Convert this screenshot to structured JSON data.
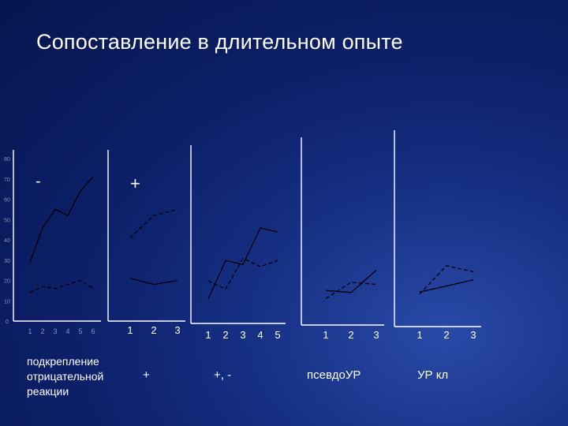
{
  "slide": {
    "title": "Сопоставление в длительном опыте"
  },
  "captions": [
    "подкрепление\nотрицательной\nреакции",
    "+",
    "+, -",
    "псевдоУР",
    "УР кл"
  ],
  "colors": {
    "line": "#000000",
    "axis": "#ffffff",
    "tick_text": "#8a93b8"
  },
  "chart_data": {
    "type": "line",
    "title": "Сопоставление в длительном опыте",
    "y_ticks": [
      0,
      10,
      20,
      30,
      40,
      50,
      60,
      70,
      80
    ],
    "ylim": [
      0,
      80
    ],
    "grid": false,
    "panels": [
      {
        "label": "-",
        "caption": "подкрепление\nотрицательной\nреакции",
        "x_ticks": [
          "1",
          "2",
          "3",
          "4",
          "5",
          "6"
        ],
        "series": [
          {
            "style": "solid",
            "x": [
              1,
              2,
              3,
              4,
              5,
              6
            ],
            "y": [
              29,
              46,
              55,
              52,
              64,
              71
            ]
          },
          {
            "style": "dashed",
            "x": [
              1,
              2,
              3,
              4,
              5,
              6
            ],
            "y": [
              14,
              17,
              16,
              18,
              20,
              16
            ]
          }
        ]
      },
      {
        "label": "+",
        "caption": "+",
        "x_ticks": [
          "1",
          "2",
          "3"
        ],
        "series": [
          {
            "style": "dashed",
            "x": [
              1,
              2,
              3
            ],
            "y": [
              41,
              52,
              55
            ]
          },
          {
            "style": "solid",
            "x": [
              1,
              2,
              3
            ],
            "y": [
              21,
              18,
              20
            ]
          }
        ]
      },
      {
        "label": "",
        "caption": "+, -",
        "x_ticks": [
          "1",
          "2",
          "3",
          "4",
          "5"
        ],
        "series": [
          {
            "style": "solid",
            "x": [
              1,
              2,
              3,
              4,
              5
            ],
            "y": [
              12,
              31,
              29,
              47,
              45
            ]
          },
          {
            "style": "dashed",
            "x": [
              1,
              2,
              3,
              4,
              5
            ],
            "y": [
              21,
              17,
              32,
              28,
              31
            ]
          }
        ]
      },
      {
        "label": "",
        "caption": "псевдоУР",
        "x_ticks": [
          "1",
          "2",
          "3"
        ],
        "series": [
          {
            "style": "solid",
            "x": [
              1,
              2,
              3
            ],
            "y": [
              17,
              16,
              27
            ]
          },
          {
            "style": "dashed",
            "x": [
              1,
              2,
              3
            ],
            "y": [
              13,
              21,
              20
            ]
          }
        ]
      },
      {
        "label": "",
        "caption": "УР кл",
        "x_ticks": [
          "1",
          "2",
          "3"
        ],
        "series": [
          {
            "style": "solid",
            "x": [
              1,
              2,
              3
            ],
            "y": [
              17,
              20,
              23
            ]
          },
          {
            "style": "dashed",
            "x": [
              1,
              2,
              3
            ],
            "y": [
              16,
              30,
              27
            ]
          }
        ]
      }
    ]
  }
}
